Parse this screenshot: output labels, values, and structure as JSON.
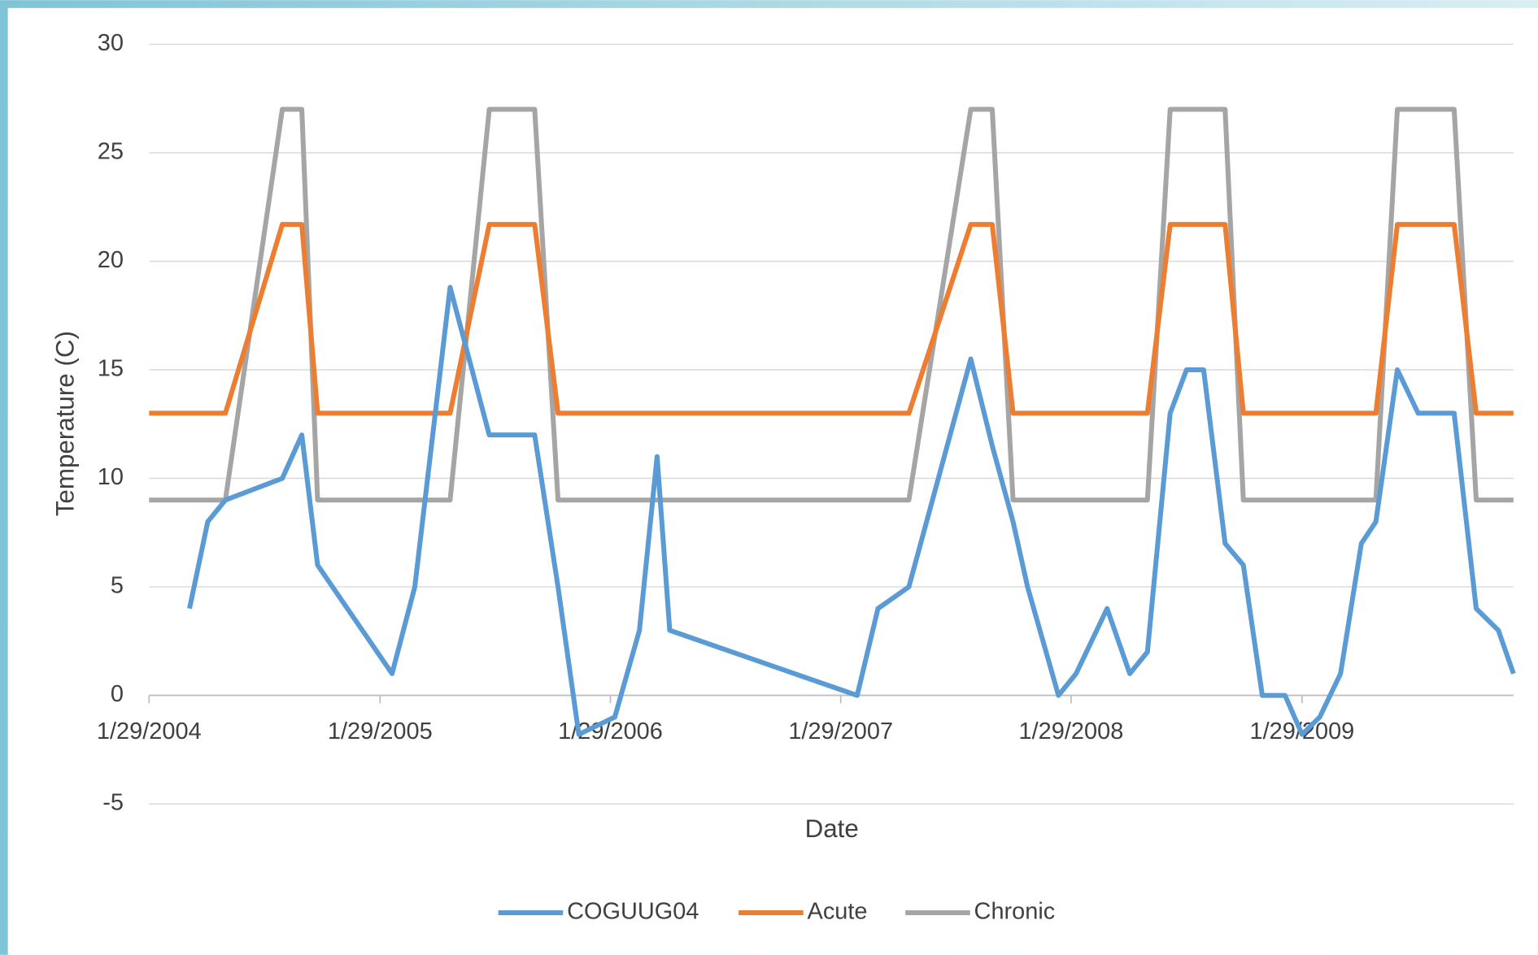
{
  "chart_data": {
    "type": "line",
    "xlabel": "Date",
    "ylabel": "Temperature (C)",
    "x": [
      "1/29/2004",
      "4/2/2004",
      "5/1/2004",
      "5/29/2004",
      "8/27/2004",
      "9/27/2004",
      "10/22/2004",
      "2/17/2005",
      "3/25/2005",
      "5/20/2005",
      "7/21/2005",
      "10/1/2005",
      "11/7/2005",
      "12/10/2005",
      "2/5/2006",
      "3/16/2006",
      "4/13/2006",
      "5/3/2006",
      "2/24/2007",
      "3/29/2007",
      "5/17/2007",
      "8/23/2007",
      "9/26/2007",
      "10/29/2007",
      "11/21/2007",
      "1/9/2008",
      "2/6/2008",
      "3/26/2008",
      "5/1/2008",
      "5/29/2008",
      "7/4/2008",
      "7/30/2008",
      "8/26/2008",
      "9/29/2008",
      "10/28/2008",
      "11/27/2008",
      "1/2/2009",
      "1/29/2009",
      "2/26/2009",
      "3/31/2009",
      "5/3/2009",
      "5/26/2009",
      "6/29/2009",
      "8/1/2009",
      "9/27/2009",
      "11/1/2009",
      "12/6/2009",
      "12/30/2009"
    ],
    "series": [
      {
        "name": "COGUUG04",
        "color": "#5b9bd5",
        "values": [
          null,
          4,
          8,
          9,
          10,
          12,
          6,
          1,
          5,
          18.8,
          12,
          12,
          5,
          -1.8,
          -1,
          3,
          11,
          3,
          0,
          4,
          5,
          15.5,
          11.5,
          8,
          5,
          0,
          1,
          4,
          1,
          2,
          13,
          15,
          15,
          7,
          6,
          0,
          0,
          -1.8,
          -1,
          1,
          7,
          8,
          15,
          13,
          13,
          4,
          3,
          1
        ]
      },
      {
        "name": "Acute",
        "color": "#ed7d31",
        "values": [
          13,
          13,
          13,
          13,
          21.7,
          21.7,
          13,
          13,
          13,
          13,
          21.7,
          21.7,
          13,
          13,
          13,
          13,
          13,
          13,
          13,
          13,
          13,
          21.7,
          21.7,
          13,
          13,
          13,
          13,
          13,
          13,
          13,
          21.7,
          21.7,
          21.7,
          21.7,
          13,
          13,
          13,
          13,
          13,
          13,
          13,
          13,
          21.7,
          21.7,
          21.7,
          13,
          13,
          13
        ]
      },
      {
        "name": "Chronic",
        "color": "#a5a5a5",
        "values": [
          9,
          9,
          9,
          9,
          27,
          27,
          9,
          9,
          9,
          9,
          27,
          27,
          9,
          9,
          9,
          9,
          9,
          9,
          9,
          9,
          9,
          27,
          27,
          9,
          9,
          9,
          9,
          9,
          9,
          9,
          27,
          27,
          27,
          27,
          9,
          9,
          9,
          9,
          9,
          9,
          9,
          9,
          27,
          27,
          27,
          9,
          9,
          9
        ]
      }
    ],
    "xlim": [
      "1/29/2004",
      "12/30/2009"
    ],
    "xticks": [
      "1/29/2004",
      "1/29/2005",
      "1/29/2006",
      "1/29/2007",
      "1/29/2008",
      "1/29/2009"
    ],
    "ylim": [
      -5,
      30
    ],
    "yticks": [
      -5,
      0,
      5,
      10,
      15,
      20,
      25,
      30
    ],
    "grid": true,
    "legend": "bottom"
  }
}
